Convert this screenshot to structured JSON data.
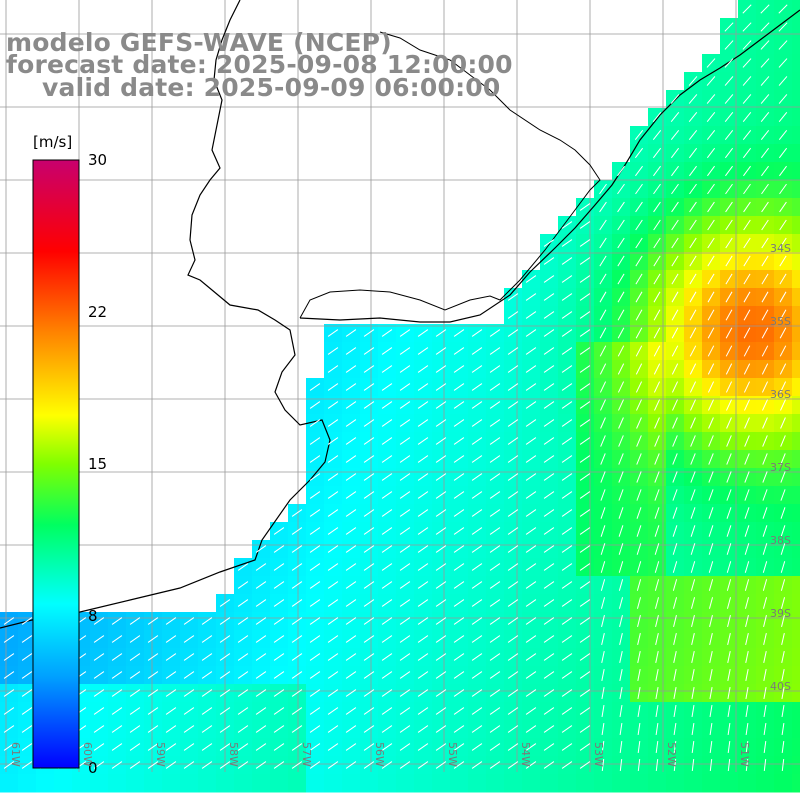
{
  "title": {
    "line1": "modelo GEFS-WAVE (NCEP)",
    "line2": "forecast date: 2025-09-08 12:00:00",
    "line3": "valid date: 2025-09-09 06:00:00"
  },
  "colorbar": {
    "unit": "[m/s]",
    "ticks": [
      "30",
      "22",
      "15",
      "8",
      "0"
    ],
    "tick_values": [
      30,
      22,
      15,
      8,
      0
    ],
    "min": 0,
    "max": 30,
    "colors": [
      "#0000ff",
      "#00b4ff",
      "#00ffff",
      "#00ff00",
      "#ffff00",
      "#ff7f00",
      "#ff0000",
      "#c8006e"
    ]
  },
  "grid": {
    "lat_labels": [
      "34S",
      "35S",
      "36S",
      "37S",
      "38S",
      "39S",
      "40S"
    ],
    "lon_labels": [
      "61W",
      "60W",
      "59W",
      "58W",
      "57W",
      "56W",
      "55W",
      "54W",
      "53W",
      "52W",
      "51W"
    ],
    "line_color": "#999999"
  },
  "colors": {
    "coast": "#000000",
    "arrow": "#ffffff",
    "land": "#ffffff"
  }
}
